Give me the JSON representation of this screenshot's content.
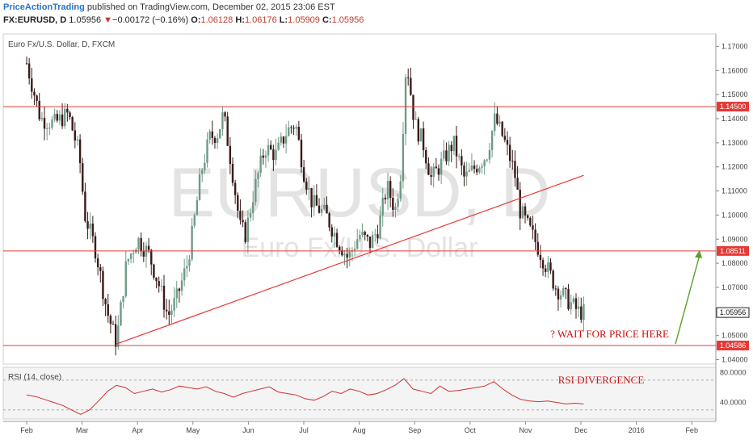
{
  "header": {
    "author": "PriceActionTrading",
    "published_text": " published on TradingView.com, December 02, 2015 23:06 EST",
    "symbol": "FX:EURUSD, D",
    "last": "1.05956",
    "change_arrow": "▼",
    "change": "−0.00172 (−0.16%)",
    "o_label": "O:",
    "o_val": "1.06128",
    "h_label": "H:",
    "h_val": "1.06176",
    "l_label": "L:",
    "l_val": "1.05909",
    "c_label": "C:",
    "c_val": "1.05956"
  },
  "chart_title": "Euro Fx/U.S. Dollar, D, FXCM",
  "watermark": {
    "big": "EURUSD, D",
    "small": "Euro Fx/U.S. Dollar"
  },
  "annotations": {
    "wait": "? WAIT FOR PRICE HERE",
    "rsi_divergence": "RSI DIVERGENCE"
  },
  "rsi_label": "RSI (14, close)",
  "rsi_axis": [
    "80.0000",
    "40.0000"
  ],
  "colors": {
    "up_candle": "#6f9a86",
    "down_candle": "#3a1a1a",
    "level_line": "#e53935",
    "trendline": "#e53935",
    "arrow": "#5aa02c",
    "rsi_line": "#d32f2f"
  },
  "chart_data": {
    "type": "candlestick",
    "symbol": "EURUSD",
    "timeframe": "D",
    "title": "Euro Fx/U.S. Dollar, D, FXCM",
    "x_ticks": [
      "Feb",
      "Mar",
      "Apr",
      "May",
      "Jun",
      "Jul",
      "Aug",
      "Sep",
      "Oct",
      "Nov",
      "Dec",
      "2016",
      "Feb"
    ],
    "y_ticks": [
      "1.17000",
      "1.16000",
      "1.15000",
      "1.14000",
      "1.13000",
      "1.12000",
      "1.11000",
      "1.10000",
      "1.09000",
      "1.08000",
      "1.07000",
      "1.06000",
      "1.05000",
      "1.04000"
    ],
    "y_range": [
      1.0385,
      1.1745
    ],
    "horizontal_levels": [
      {
        "price": 1.145,
        "label": "1.14500"
      },
      {
        "price": 1.08511,
        "label": "1.08511"
      },
      {
        "price": 1.04586,
        "label": "1.04586"
      }
    ],
    "last_price": {
      "price": 1.05956,
      "label": "1.05956"
    },
    "trendline": {
      "from_month_index": 1.62,
      "from_price": 1.0465,
      "to_month_index": 10.05,
      "to_price": 1.1165
    },
    "price_path": [
      [
        0.0,
        1.163
      ],
      [
        0.25,
        1.14
      ],
      [
        0.5,
        1.138
      ],
      [
        0.75,
        1.142
      ],
      [
        0.95,
        1.125
      ],
      [
        1.05,
        1.1
      ],
      [
        1.25,
        1.085
      ],
      [
        1.45,
        1.06
      ],
      [
        1.62,
        1.047
      ],
      [
        1.8,
        1.08
      ],
      [
        2.0,
        1.09
      ],
      [
        2.2,
        1.084
      ],
      [
        2.4,
        1.07
      ],
      [
        2.55,
        1.058
      ],
      [
        2.7,
        1.065
      ],
      [
        2.9,
        1.08
      ],
      [
        3.0,
        1.094
      ],
      [
        3.15,
        1.118
      ],
      [
        3.3,
        1.132
      ],
      [
        3.45,
        1.134
      ],
      [
        3.55,
        1.142
      ],
      [
        3.7,
        1.12
      ],
      [
        3.85,
        1.095
      ],
      [
        3.95,
        1.092
      ],
      [
        4.1,
        1.11
      ],
      [
        4.3,
        1.128
      ],
      [
        4.5,
        1.125
      ],
      [
        4.7,
        1.135
      ],
      [
        4.85,
        1.138
      ],
      [
        5.0,
        1.118
      ],
      [
        5.15,
        1.105
      ],
      [
        5.4,
        1.1
      ],
      [
        5.6,
        1.09
      ],
      [
        5.8,
        1.082
      ],
      [
        6.0,
        1.092
      ],
      [
        6.2,
        1.088
      ],
      [
        6.35,
        1.095
      ],
      [
        6.5,
        1.112
      ],
      [
        6.65,
        1.102
      ],
      [
        6.75,
        1.118
      ],
      [
        6.85,
        1.165
      ],
      [
        7.0,
        1.138
      ],
      [
        7.15,
        1.13
      ],
      [
        7.3,
        1.115
      ],
      [
        7.5,
        1.122
      ],
      [
        7.7,
        1.13
      ],
      [
        7.9,
        1.115
      ],
      [
        8.1,
        1.12
      ],
      [
        8.3,
        1.125
      ],
      [
        8.45,
        1.14
      ],
      [
        8.6,
        1.132
      ],
      [
        8.8,
        1.118
      ],
      [
        8.9,
        1.102
      ],
      [
        9.05,
        1.095
      ],
      [
        9.2,
        1.088
      ],
      [
        9.35,
        1.08
      ],
      [
        9.55,
        1.07
      ],
      [
        9.75,
        1.065
      ],
      [
        9.95,
        1.06
      ],
      [
        10.05,
        1.0596
      ]
    ],
    "rsi": {
      "name": "RSI (14, close)",
      "levels": [
        70,
        30
      ],
      "axis_ticks": [
        80,
        40
      ],
      "values": [
        50,
        48,
        44,
        40,
        36,
        30,
        24,
        30,
        42,
        55,
        63,
        60,
        52,
        55,
        58,
        54,
        57,
        62,
        60,
        58,
        61,
        55,
        52,
        47,
        52,
        55,
        58,
        61,
        54,
        52,
        50,
        45,
        43,
        48,
        55,
        52,
        58,
        55,
        50,
        52,
        57,
        63,
        72,
        58,
        55,
        52,
        62,
        55,
        56,
        58,
        60,
        62,
        68,
        58,
        50,
        44,
        42,
        41,
        42,
        40,
        38,
        39,
        38
      ]
    }
  }
}
